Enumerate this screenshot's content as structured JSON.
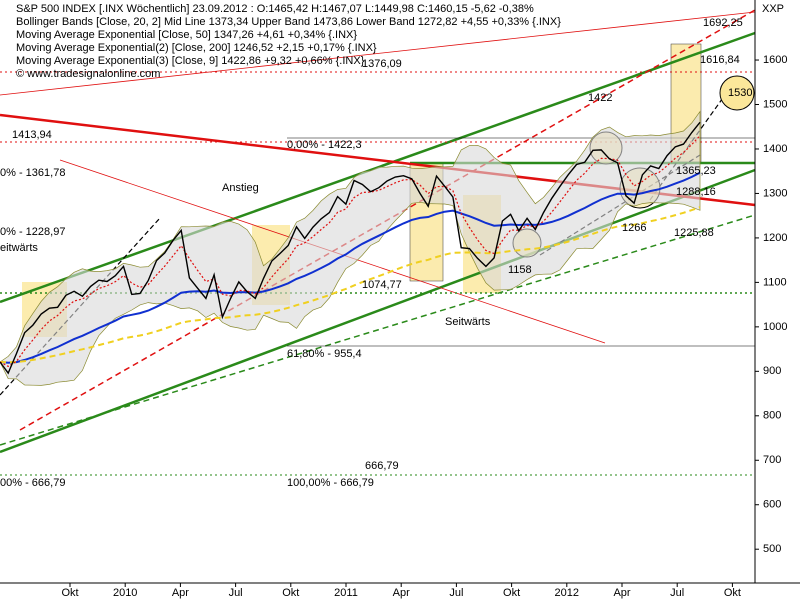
{
  "chart_data": {
    "type": "line",
    "header": [
      "S&P 500 INDEX [.INX  Wöchentlich] 23.09.2012 : O:1465,42 H:1467,07 L:1449,98 C:1460,15 -5,62 -0,38%",
      "Bollinger Bands [Close, 20, 2] Mid Line 1373,34 Upper Band 1473,86 Lower Band 1272,82 +4,55 +0,33% {.INX}",
      "Moving Average Exponential [Close, 50] 1347,26 +4,61 +0,34% {.INX}",
      "Moving Average Exponential(2) [Close, 200] 1246,52 +2,15 +0,17% {.INX}",
      "Moving Average Exponential(3) [Close, 9] 1422,86 +9,32 +0,66% {.INX}",
      "© www.tradesignalonline.com"
    ],
    "axis_label": "XXP",
    "series": [
      {
        "name": "S&P 500 INDEX",
        "color": "#000000",
        "values": [
          921,
          896,
          940,
          987,
          1004,
          1029,
          1042,
          1044,
          1071,
          1080,
          1069,
          1091,
          1105,
          1102,
          1115,
          1136,
          1073,
          1075,
          1104,
          1149,
          1166,
          1194,
          1217,
          1110,
          1087,
          1064,
          1117,
          1022,
          1064,
          1101,
          1079,
          1064,
          1109,
          1148,
          1165,
          1183,
          1225,
          1199,
          1224,
          1243,
          1257,
          1293,
          1276,
          1329,
          1320,
          1304,
          1313,
          1328,
          1337,
          1340,
          1333,
          1300,
          1271,
          1339,
          1316,
          1292,
          1178,
          1176,
          1154,
          1136,
          1155,
          1238,
          1253,
          1216,
          1244,
          1219,
          1257,
          1289,
          1316,
          1342,
          1365,
          1370,
          1397,
          1398,
          1378,
          1369,
          1295,
          1278,
          1342,
          1362,
          1356,
          1385,
          1405,
          1411,
          1437,
          1460
        ]
      }
    ],
    "xlabels": [
      "Okt",
      "2010",
      "Apr",
      "Jul",
      "Okt",
      "2011",
      "Apr",
      "Jul",
      "Okt",
      "2012",
      "Apr",
      "Jul",
      "Okt"
    ],
    "ylim": [
      424,
      1735
    ],
    "yticks": [
      500,
      600,
      700,
      800,
      900,
      1000,
      1100,
      1200,
      1300,
      1400,
      1500,
      1600
    ],
    "annotations": [
      "1692,25",
      "1616,84",
      "1376,09",
      "1422",
      "1530",
      "1413,94",
      "0,00% - 1422,3",
      "0% - 1361,78",
      "Anstieg",
      "1365,23",
      "1288,16",
      "1266",
      "1225,88",
      "0% - 1228,97",
      "eitwärts",
      "1158",
      "1074,77",
      "Seitwärts",
      "61,80% - 955,4",
      "666,79",
      "00% - 666,79",
      "100,00% - 666,79"
    ]
  }
}
